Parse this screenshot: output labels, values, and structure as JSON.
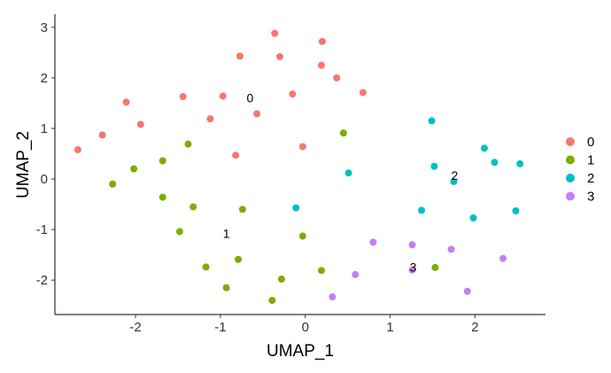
{
  "chart_data": {
    "type": "scatter",
    "xlabel": "UMAP_1",
    "ylabel": "UMAP_2",
    "xlim": [
      -2.95,
      2.83
    ],
    "ylim": [
      -2.68,
      3.26
    ],
    "xticks": [
      -2,
      -1,
      0,
      1,
      2
    ],
    "yticks": [
      -2,
      -1,
      0,
      1,
      2,
      3
    ],
    "grid": false,
    "legend_position": "right",
    "series": [
      {
        "name": "0",
        "color": "#F8766D",
        "points": [
          [
            -0.36,
            2.88
          ],
          [
            0.2,
            2.72
          ],
          [
            -0.77,
            2.43
          ],
          [
            -0.3,
            2.42
          ],
          [
            0.19,
            2.25
          ],
          [
            0.37,
            2.0
          ],
          [
            -1.44,
            1.63
          ],
          [
            -0.97,
            1.64
          ],
          [
            -0.15,
            1.68
          ],
          [
            0.68,
            1.71
          ],
          [
            -2.11,
            1.52
          ],
          [
            -0.57,
            1.29
          ],
          [
            -1.12,
            1.19
          ],
          [
            -1.94,
            1.08
          ],
          [
            -2.39,
            0.87
          ],
          [
            -2.68,
            0.58
          ],
          [
            -0.03,
            0.64
          ],
          [
            -0.82,
            0.47
          ]
        ]
      },
      {
        "name": "1",
        "color": "#7CAE00",
        "points": [
          [
            0.45,
            0.91
          ],
          [
            -1.38,
            0.69
          ],
          [
            -1.68,
            0.36
          ],
          [
            -2.02,
            0.2
          ],
          [
            -2.27,
            -0.1
          ],
          [
            -1.68,
            -0.36
          ],
          [
            -1.32,
            -0.55
          ],
          [
            -0.74,
            -0.6
          ],
          [
            -1.48,
            -1.04
          ],
          [
            -0.03,
            -1.13
          ],
          [
            -0.79,
            -1.59
          ],
          [
            -1.17,
            -1.74
          ],
          [
            0.19,
            -1.81
          ],
          [
            1.53,
            -1.75
          ],
          [
            -0.28,
            -1.98
          ],
          [
            -0.93,
            -2.15
          ],
          [
            -0.39,
            -2.4
          ]
        ]
      },
      {
        "name": "2",
        "color": "#00BFC4",
        "points": [
          [
            1.49,
            1.15
          ],
          [
            2.11,
            0.61
          ],
          [
            2.23,
            0.33
          ],
          [
            2.53,
            0.3
          ],
          [
            1.52,
            0.25
          ],
          [
            0.51,
            0.12
          ],
          [
            1.75,
            -0.05
          ],
          [
            -0.11,
            -0.57
          ],
          [
            1.37,
            -0.62
          ],
          [
            2.48,
            -0.63
          ],
          [
            1.98,
            -0.77
          ]
        ]
      },
      {
        "name": "3",
        "color": "#C77CFF",
        "points": [
          [
            0.8,
            -1.25
          ],
          [
            1.26,
            -1.3
          ],
          [
            1.72,
            -1.39
          ],
          [
            2.33,
            -1.57
          ],
          [
            1.26,
            -1.8
          ],
          [
            0.59,
            -1.89
          ],
          [
            1.91,
            -2.22
          ],
          [
            0.32,
            -2.33
          ]
        ]
      }
    ],
    "cluster_labels": [
      {
        "text": "0",
        "x": -0.65,
        "y": 1.6
      },
      {
        "text": "1",
        "x": -0.93,
        "y": -1.08
      },
      {
        "text": "2",
        "x": 1.76,
        "y": 0.07
      },
      {
        "text": "3",
        "x": 1.27,
        "y": -1.74
      }
    ]
  }
}
